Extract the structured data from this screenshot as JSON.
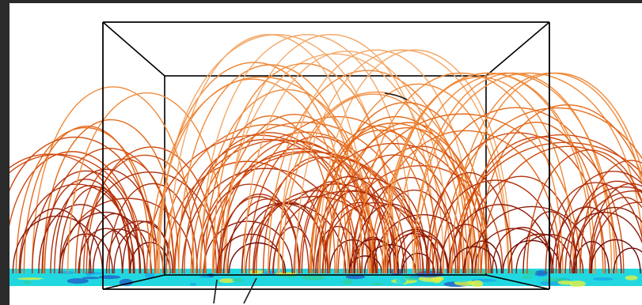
{
  "scene": {
    "background_color": "#ffffff",
    "frame_color": "#2a2a2a",
    "box_line_color": "#000000",
    "field_line_colors": [
      "#6e0a05",
      "#8e1a08",
      "#b0300c",
      "#cf4a10",
      "#e46a1a",
      "#f08a3a",
      "#f4a868"
    ],
    "surface_colors": [
      "#22d8e0",
      "#1aa8e8",
      "#2060c8",
      "#30d0a0",
      "#e6f040"
    ],
    "stray_line_color": "#1a1a1a"
  }
}
